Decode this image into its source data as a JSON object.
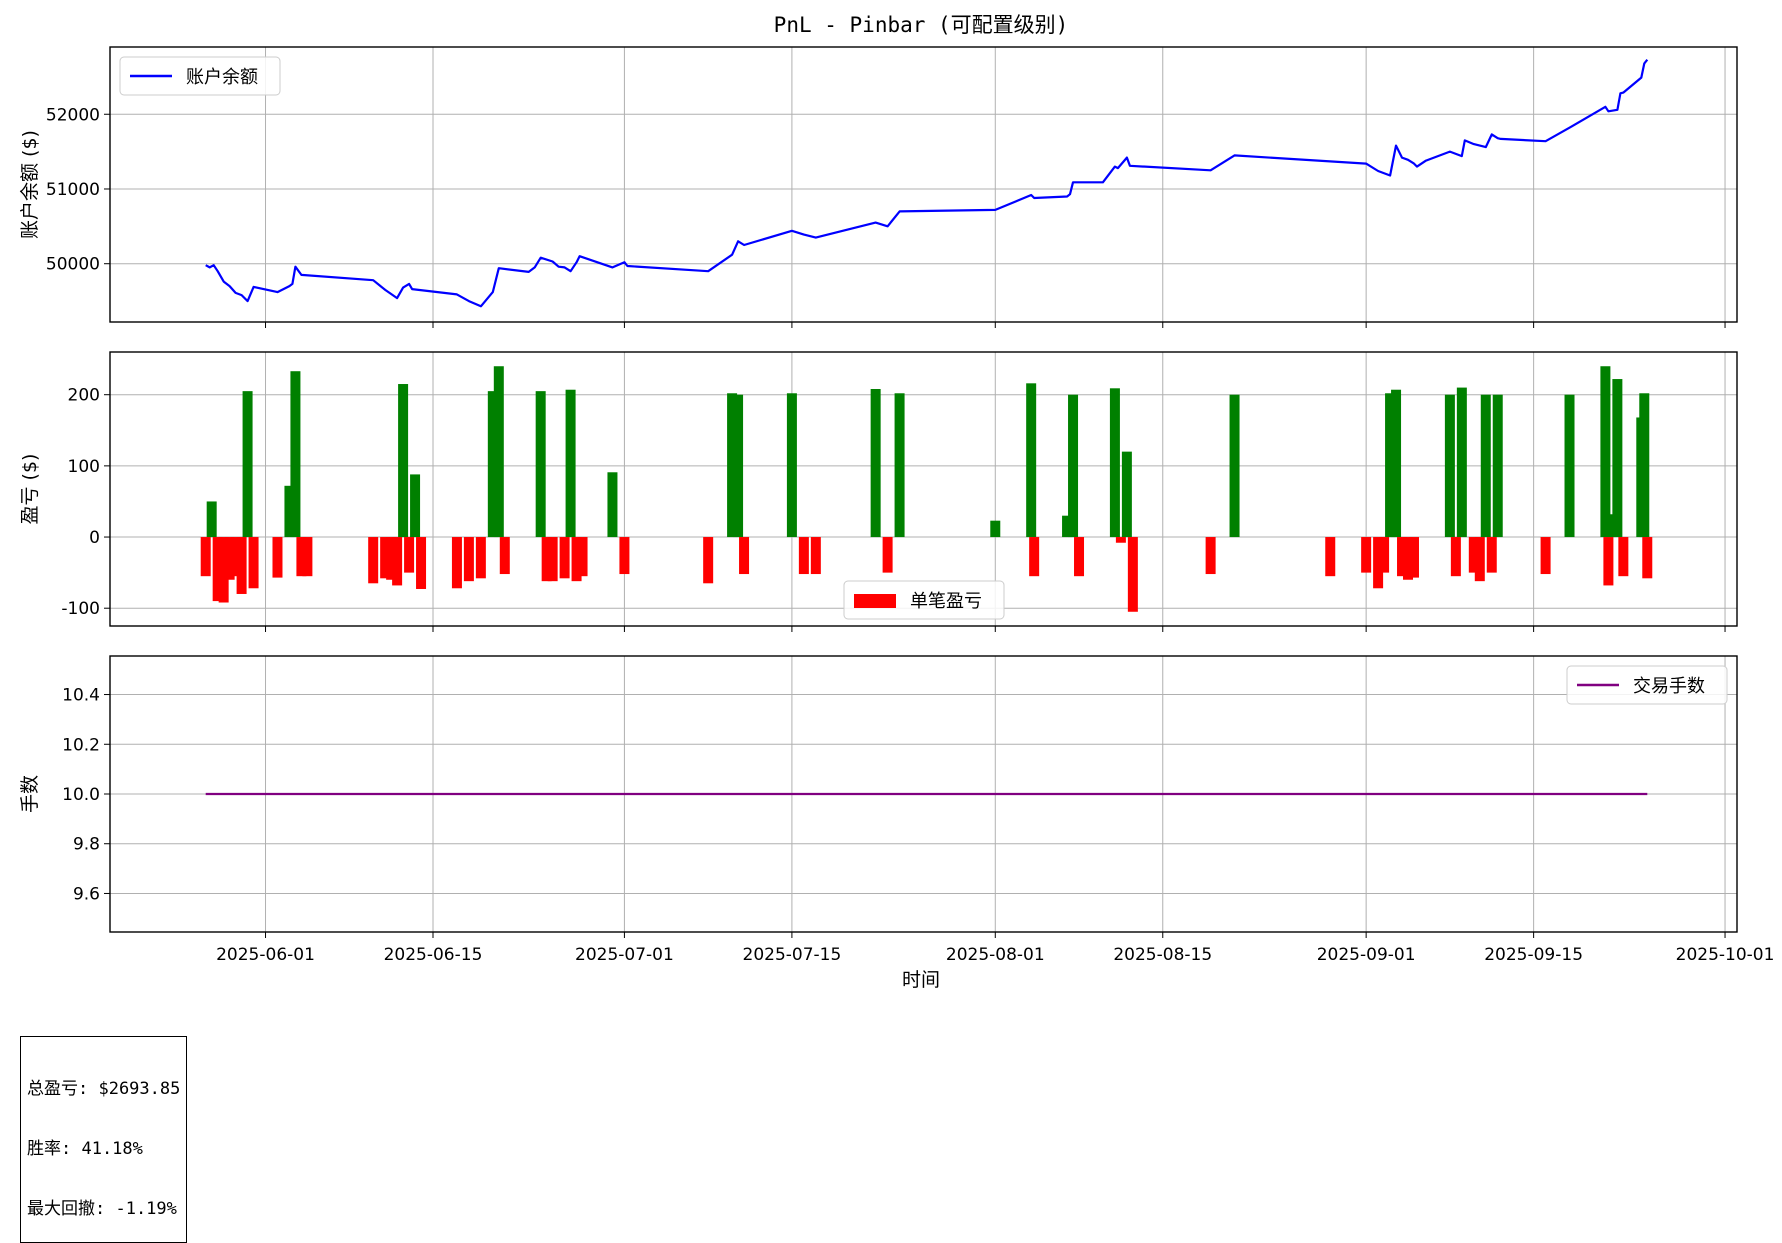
{
  "title": "PnL - Pinbar (可配置级别)",
  "xlabel": "时间",
  "xticks": [
    "2025-06-01",
    "2025-06-15",
    "2025-07-01",
    "2025-07-15",
    "2025-08-01",
    "2025-08-15",
    "2025-09-01",
    "2025-09-15",
    "2025-10-01"
  ],
  "stats": {
    "total_pnl": "总盈亏: $2693.85",
    "win_rate": "胜率: 41.18%",
    "max_drawdown": "最大回撤: -1.19%"
  },
  "colors": {
    "balance": "#0000ff",
    "win": "#008000",
    "loss": "#ff0000",
    "lots": "#800080",
    "grid": "#b0b0b0"
  },
  "chart_data": [
    {
      "type": "line",
      "ylabel": "账户余额 ($)",
      "legend": "top-left",
      "grid": true,
      "ylim": [
        49220,
        52900
      ],
      "yticks": [
        50000,
        51000,
        52000
      ],
      "series": [
        {
          "name": "账户余额",
          "x": [
            "2025-05-27",
            "2025-05-27T08:00",
            "2025-05-27T16:00",
            "2025-05-28",
            "2025-05-28T12:00",
            "2025-05-29",
            "2025-05-29T12:00",
            "2025-05-30",
            "2025-05-30T12:00",
            "2025-05-31",
            "2025-06-02",
            "2025-06-03",
            "2025-06-03T06:00",
            "2025-06-03T12:00",
            "2025-06-04",
            "2025-06-10",
            "2025-06-11",
            "2025-06-12",
            "2025-06-12T12:00",
            "2025-06-13",
            "2025-06-13T06:00",
            "2025-06-17",
            "2025-06-18",
            "2025-06-19",
            "2025-06-20",
            "2025-06-20T12:00",
            "2025-06-23",
            "2025-06-23T12:00",
            "2025-06-24",
            "2025-06-25",
            "2025-06-25T12:00",
            "2025-06-26",
            "2025-06-26T12:00",
            "2025-06-27",
            "2025-06-27T06:00",
            "2025-06-30",
            "2025-07-01",
            "2025-07-01T06:00",
            "2025-07-08",
            "2025-07-10",
            "2025-07-10T12:00",
            "2025-07-11",
            "2025-07-15",
            "2025-07-16",
            "2025-07-17",
            "2025-07-22",
            "2025-07-23",
            "2025-07-24",
            "2025-08-01",
            "2025-08-04",
            "2025-08-04T06:00",
            "2025-08-07",
            "2025-08-07T06:00",
            "2025-08-07T12:00",
            "2025-08-10",
            "2025-08-11",
            "2025-08-11T06:00",
            "2025-08-12",
            "2025-08-12T06:00",
            "2025-08-19",
            "2025-08-21",
            "2025-09-01",
            "2025-09-02",
            "2025-09-03",
            "2025-09-03T12:00",
            "2025-09-04",
            "2025-09-04T12:00",
            "2025-09-05",
            "2025-09-05T06:00",
            "2025-09-06",
            "2025-09-08",
            "2025-09-09",
            "2025-09-09T06:00",
            "2025-09-10",
            "2025-09-11",
            "2025-09-11T12:00",
            "2025-09-12",
            "2025-09-12T06:00",
            "2025-09-16",
            "2025-09-18",
            "2025-09-21",
            "2025-09-21T06:00",
            "2025-09-22",
            "2025-09-22T06:00",
            "2025-09-22T12:00",
            "2025-09-24",
            "2025-09-24T06:00",
            "2025-09-24T12:00"
          ],
          "y": [
            49980,
            49950,
            49980,
            49900,
            49760,
            49700,
            49610,
            49580,
            49500,
            49690,
            49620,
            49700,
            49730,
            49960,
            49850,
            49780,
            49650,
            49540,
            49680,
            49730,
            49660,
            49590,
            49500,
            49430,
            49620,
            49940,
            49890,
            49950,
            50080,
            50030,
            49960,
            49950,
            49900,
            50020,
            50100,
            49950,
            50020,
            49970,
            49900,
            50120,
            50300,
            50250,
            50440,
            50390,
            50350,
            50550,
            50500,
            50700,
            50720,
            50920,
            50880,
            50900,
            50930,
            51090,
            51090,
            51300,
            51280,
            51420,
            51310,
            51250,
            51450,
            51340,
            51240,
            51180,
            51580,
            51420,
            51390,
            51340,
            51300,
            51380,
            51500,
            51440,
            51650,
            51600,
            51560,
            51730,
            51680,
            51670,
            51640,
            51820,
            52100,
            52040,
            52060,
            52280,
            52290,
            52490,
            52680,
            52730
          ]
        }
      ]
    },
    {
      "type": "bar",
      "ylabel": "盈亏 ($)",
      "legend": "lower-center",
      "grid": true,
      "ylim": [
        -125,
        260
      ],
      "yticks": [
        -100,
        0,
        100,
        200
      ],
      "series": [
        {
          "name": "单笔盈亏",
          "x": [
            "2025-05-27",
            "2025-05-27T12:00",
            "2025-05-28",
            "2025-05-28T12:00",
            "2025-05-29",
            "2025-05-29T12:00",
            "2025-05-30",
            "2025-05-30T12:00",
            "2025-05-31",
            "2025-06-02",
            "2025-06-03",
            "2025-06-03T12:00",
            "2025-06-04",
            "2025-06-04T12:00",
            "2025-06-10",
            "2025-06-11",
            "2025-06-11T12:00",
            "2025-06-12",
            "2025-06-12T12:00",
            "2025-06-13",
            "2025-06-13T12:00",
            "2025-06-14",
            "2025-06-17",
            "2025-06-18",
            "2025-06-19",
            "2025-06-20",
            "2025-06-20T12:00",
            "2025-06-21",
            "2025-06-24",
            "2025-06-24T12:00",
            "2025-06-25",
            "2025-06-26",
            "2025-06-26T12:00",
            "2025-06-27",
            "2025-06-27T12:00",
            "2025-06-30",
            "2025-07-01",
            "2025-07-08",
            "2025-07-10",
            "2025-07-10T12:00",
            "2025-07-11",
            "2025-07-15",
            "2025-07-16",
            "2025-07-17",
            "2025-07-22",
            "2025-07-23",
            "2025-07-24",
            "2025-08-01",
            "2025-08-04",
            "2025-08-04T06:00",
            "2025-08-07",
            "2025-08-07T12:00",
            "2025-08-08",
            "2025-08-11",
            "2025-08-11T12:00",
            "2025-08-12",
            "2025-08-12T12:00",
            "2025-08-19",
            "2025-08-21",
            "2025-08-29",
            "2025-09-01",
            "2025-09-02",
            "2025-09-02T12:00",
            "2025-09-03",
            "2025-09-03T12:00",
            "2025-09-04",
            "2025-09-04T12:00",
            "2025-09-05",
            "2025-09-08",
            "2025-09-08T12:00",
            "2025-09-09",
            "2025-09-10",
            "2025-09-10T12:00",
            "2025-09-11",
            "2025-09-11T12:00",
            "2025-09-12",
            "2025-09-16",
            "2025-09-18",
            "2025-09-21",
            "2025-09-21T06:00",
            "2025-09-21T12:00",
            "2025-09-22",
            "2025-09-22T12:00",
            "2025-09-24",
            "2025-09-24T06:00",
            "2025-09-24T12:00"
          ],
          "values": [
            -55,
            50,
            -90,
            -92,
            -60,
            -55,
            -80,
            205,
            -72,
            -57,
            72,
            233,
            -55,
            -55,
            -65,
            -58,
            -60,
            -68,
            215,
            -50,
            88,
            -73,
            -72,
            -62,
            -58,
            205,
            240,
            -52,
            205,
            -62,
            -62,
            -58,
            207,
            -62,
            -55,
            91,
            -52,
            -65,
            202,
            200,
            -52,
            202,
            -52,
            -52,
            208,
            -50,
            202,
            23,
            216,
            -55,
            30,
            200,
            -55,
            209,
            -8,
            120,
            -105,
            -52,
            200,
            -55,
            -50,
            -72,
            -50,
            202,
            207,
            -55,
            -60,
            -57,
            200,
            -55,
            210,
            -50,
            -62,
            200,
            -50,
            200,
            -52,
            200,
            240,
            -68,
            32,
            222,
            -55,
            168,
            202,
            -58
          ]
        }
      ]
    },
    {
      "type": "line",
      "ylabel": "手数",
      "legend": "top-right",
      "grid": true,
      "ylim": [
        9.445,
        10.555
      ],
      "yticks": [
        9.6,
        9.8,
        10.0,
        10.2,
        10.4
      ],
      "series": [
        {
          "name": "交易手数",
          "x": [
            "2025-05-27",
            "2025-09-24T12:00"
          ],
          "y": [
            10.0,
            10.0
          ]
        }
      ]
    }
  ]
}
